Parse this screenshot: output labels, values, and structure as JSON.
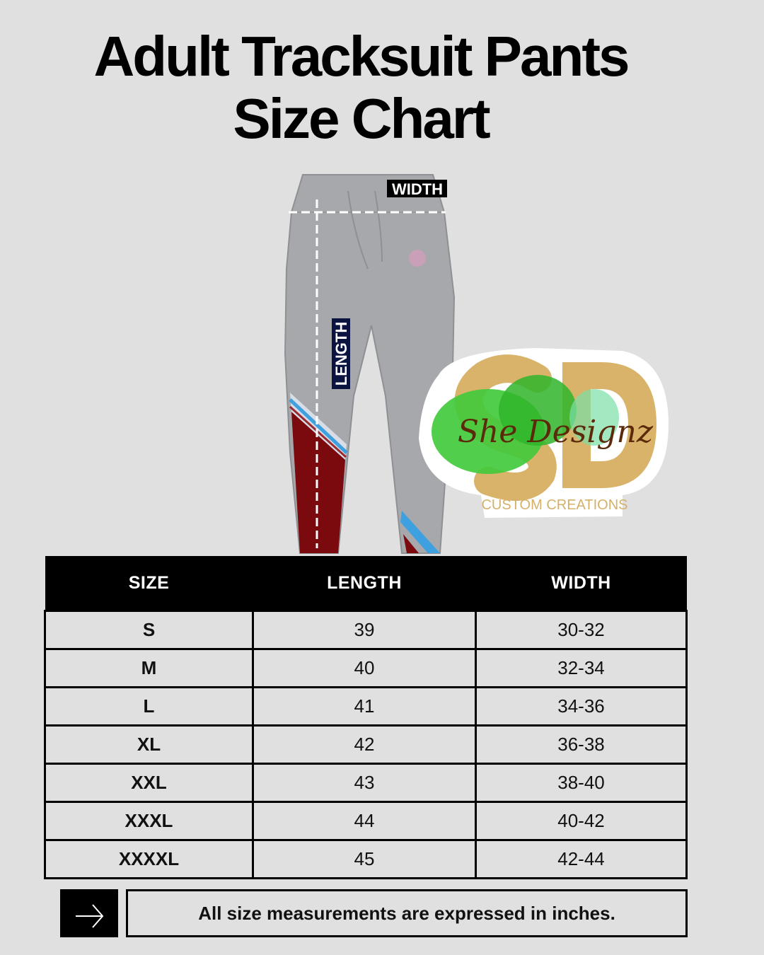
{
  "title_line1": "Adult Tracksuit Pants",
  "title_line2": "Size Chart",
  "diagram": {
    "width_label": "WIDTH",
    "length_label": "LENGTH"
  },
  "logo": {
    "monogram": "SD",
    "script": "She Designz",
    "tagline": "CUSTOM CREATIONS"
  },
  "table": {
    "headers": [
      "SIZE",
      "LENGTH",
      "WIDTH"
    ],
    "rows": [
      [
        "S",
        "39",
        "30-32"
      ],
      [
        "M",
        "40",
        "32-34"
      ],
      [
        "L",
        "41",
        "34-36"
      ],
      [
        "XL",
        "42",
        "36-38"
      ],
      [
        "XXL",
        "43",
        "38-40"
      ],
      [
        "XXXL",
        "44",
        "40-42"
      ],
      [
        "XXXXL",
        "45",
        "42-44"
      ]
    ]
  },
  "note": "All size measurements are expressed in inches.",
  "colors": {
    "background": "#e0e0e0",
    "pants": "#a7a8ab",
    "stripe_red": "#7a0a0e",
    "stripe_blue": "#3fa0e0",
    "gold": "#d9b36a",
    "green": "#3fc93a"
  }
}
